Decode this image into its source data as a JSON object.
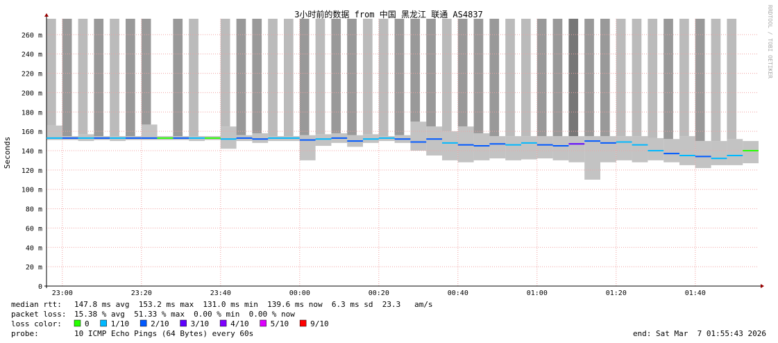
{
  "chart_data": {
    "type": "line",
    "title": "3小时前的数据 from 中国 黑龙江 联通 AS4837",
    "y_label": "Seconds",
    "watermark": "RRDTOOL / TOBI OETIKER",
    "xlim": [
      "22:56",
      "01:56"
    ],
    "xticks": [
      "23:00",
      "23:20",
      "23:40",
      "00:00",
      "00:20",
      "00:40",
      "01:00",
      "01:20",
      "01:40"
    ],
    "ylim": [
      0,
      0.28
    ],
    "yticks": [
      0,
      {
        "value": 0.02,
        "label": "20 m"
      },
      {
        "value": 0.04,
        "label": "40 m"
      },
      {
        "value": 0.06,
        "label": "60 m"
      },
      {
        "value": 0.08,
        "label": "80 m"
      },
      {
        "value": 0.1,
        "label": "100 m"
      },
      {
        "value": 0.12,
        "label": "120 m"
      },
      {
        "value": 0.14,
        "label": "140 m"
      },
      {
        "value": 0.16,
        "label": "160 m"
      },
      {
        "value": 0.18,
        "label": "180 m"
      },
      {
        "value": 0.2,
        "label": "200 m"
      },
      {
        "value": 0.22,
        "label": "220 m"
      },
      {
        "value": 0.24,
        "label": "240 m"
      },
      {
        "value": 0.26,
        "label": "260 m"
      }
    ],
    "grid": true,
    "x": [
      "22:56",
      "23:00",
      "23:04",
      "23:08",
      "23:12",
      "23:16",
      "23:20",
      "23:24",
      "23:28",
      "23:32",
      "23:36",
      "23:40",
      "23:44",
      "23:48",
      "23:52",
      "23:56",
      "00:00",
      "00:04",
      "00:08",
      "00:12",
      "00:16",
      "00:20",
      "00:24",
      "00:28",
      "00:32",
      "00:36",
      "00:40",
      "00:44",
      "00:48",
      "00:52",
      "00:56",
      "01:00",
      "01:04",
      "01:08",
      "01:12",
      "01:16",
      "01:20",
      "01:24",
      "01:28",
      "01:32",
      "01:36",
      "01:40",
      "01:44",
      "01:48",
      "01:52"
    ],
    "median": [
      0.153,
      0.153,
      0.153,
      0.153,
      0.153,
      0.153,
      0.153,
      0.153,
      0.153,
      0.153,
      0.153,
      0.152,
      0.153,
      0.152,
      0.153,
      0.153,
      0.151,
      0.152,
      0.153,
      0.15,
      0.152,
      0.153,
      0.152,
      0.149,
      0.152,
      0.148,
      0.146,
      0.145,
      0.147,
      0.146,
      0.148,
      0.146,
      0.145,
      0.147,
      0.15,
      0.148,
      0.149,
      0.146,
      0.14,
      0.137,
      0.135,
      0.134,
      0.132,
      0.135,
      0.14
    ],
    "smoke_low": [
      0.151,
      0.151,
      0.15,
      0.151,
      0.15,
      0.151,
      0.151,
      0.151,
      0.151,
      0.15,
      0.151,
      0.142,
      0.15,
      0.148,
      0.15,
      0.15,
      0.13,
      0.145,
      0.148,
      0.144,
      0.148,
      0.15,
      0.148,
      0.14,
      0.135,
      0.13,
      0.128,
      0.13,
      0.132,
      0.13,
      0.131,
      0.132,
      0.13,
      0.128,
      0.11,
      0.128,
      0.13,
      0.128,
      0.13,
      0.128,
      0.125,
      0.122,
      0.125,
      0.125,
      0.127
    ],
    "smoke_high": [
      0.166,
      0.155,
      0.157,
      0.155,
      0.155,
      0.155,
      0.167,
      0.155,
      0.155,
      0.155,
      0.155,
      0.165,
      0.156,
      0.158,
      0.155,
      0.155,
      0.156,
      0.157,
      0.158,
      0.156,
      0.157,
      0.155,
      0.156,
      0.17,
      0.165,
      0.16,
      0.165,
      0.158,
      0.155,
      0.155,
      0.155,
      0.155,
      0.155,
      0.155,
      0.155,
      0.155,
      0.155,
      0.155,
      0.153,
      0.152,
      0.155,
      0.15,
      0.15,
      0.152,
      0.15
    ],
    "loss": [
      1,
      2,
      1,
      2,
      1,
      2,
      2,
      0,
      2,
      1,
      0,
      1,
      2,
      2,
      1,
      1,
      2,
      1,
      2,
      2,
      1,
      1,
      2,
      2,
      2,
      1,
      2,
      2,
      2,
      1,
      1,
      2,
      2,
      3,
      2,
      2,
      1,
      1,
      1,
      2,
      1,
      2,
      1,
      1,
      0
    ],
    "loss_legend": [
      {
        "label": "0",
        "color": "#26ff00"
      },
      {
        "label": "1/10",
        "color": "#00b8ff"
      },
      {
        "label": "2/10",
        "color": "#0059ff"
      },
      {
        "label": "3/10",
        "color": "#5e00ff"
      },
      {
        "label": "4/10",
        "color": "#7e00ff"
      },
      {
        "label": "5/10",
        "color": "#dd00ff"
      },
      {
        "label": "9/10",
        "color": "#ff0000"
      }
    ]
  },
  "footer": {
    "median_rtt_label": "median rtt:",
    "median_rtt": "147.8 ms avg  153.2 ms max  131.0 ms min  139.6 ms now  6.3 ms sd  23.3   am/s",
    "packet_loss_label": "packet loss:",
    "packet_loss": "15.38 % avg  51.33 % max  0.00 % min  0.00 % now",
    "loss_color_label": "loss color:",
    "probe_label": "probe:",
    "probe": "10 ICMP Echo Pings (64 Bytes) every 60s",
    "end": "end: Sat Mar  7 01:55:43 2026"
  }
}
